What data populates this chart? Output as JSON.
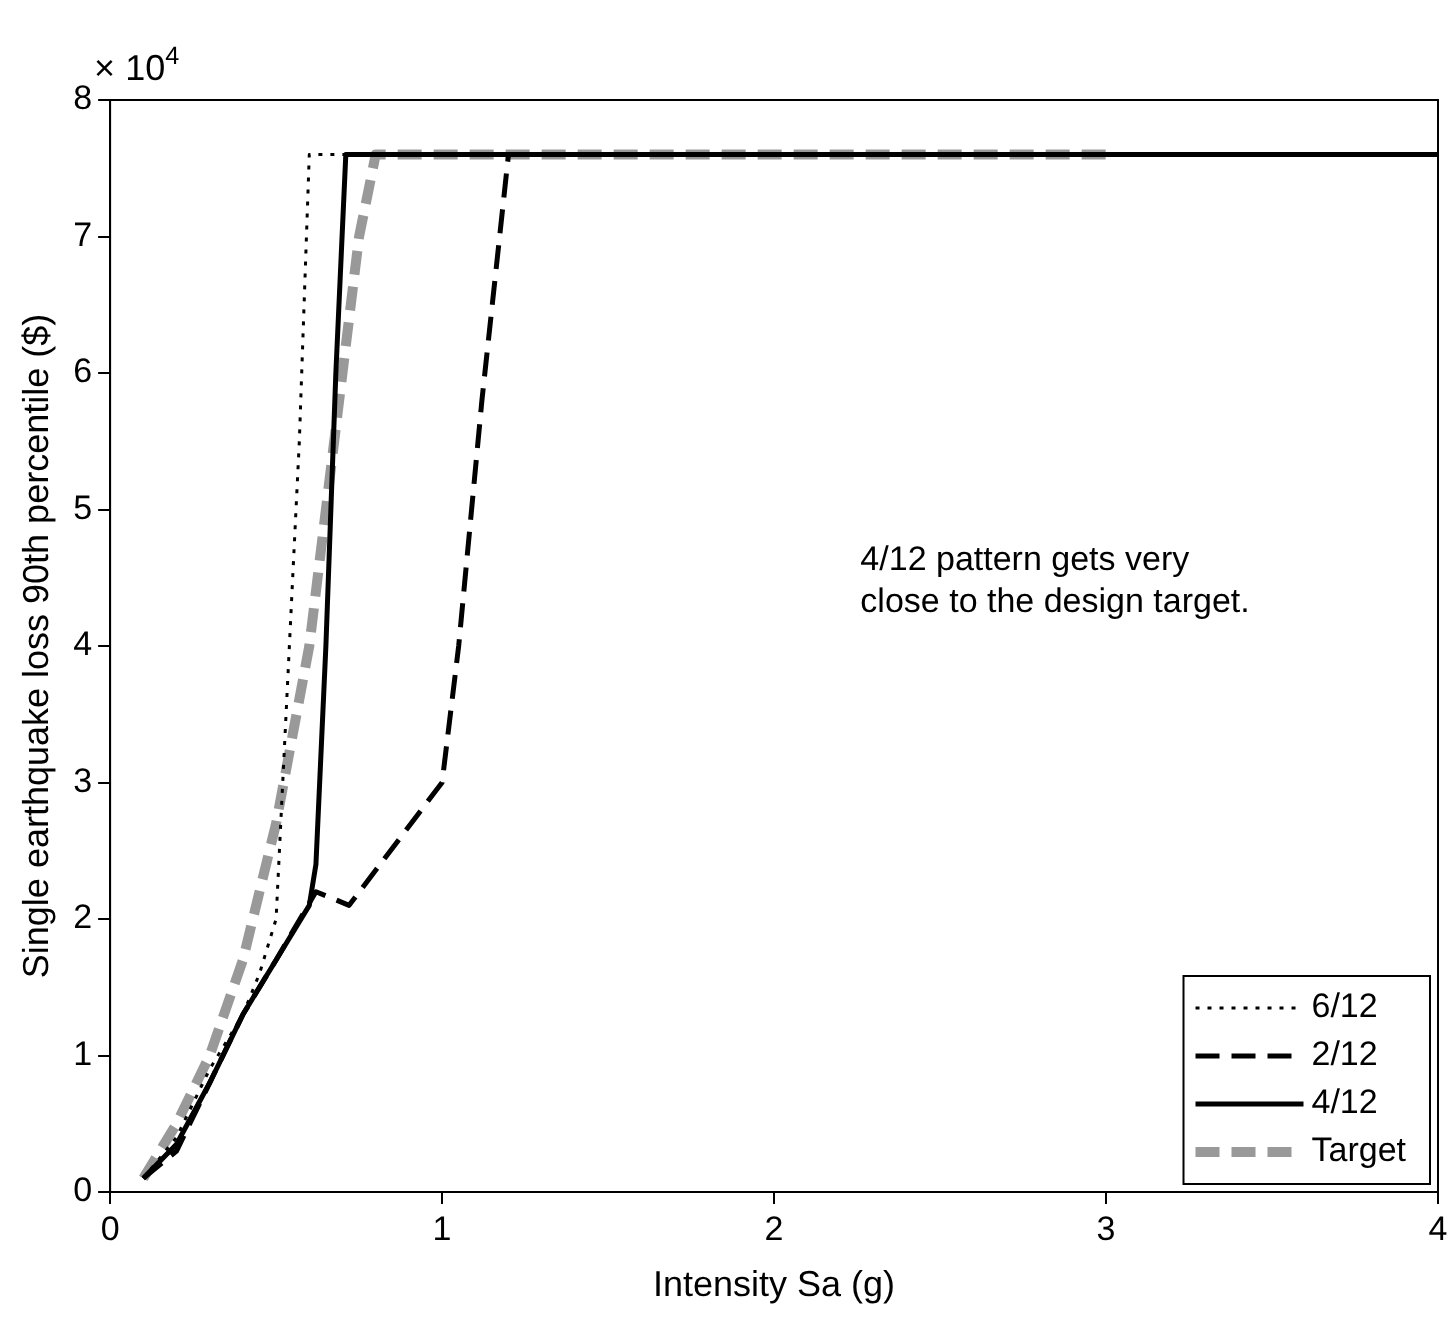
{
  "chart_data": {
    "type": "line",
    "xlabel": "Intensity Sa (g)",
    "ylabel": "Single earthquake loss 90th percentile ($)",
    "xlim": [
      0,
      4
    ],
    "xticks": [
      0,
      1,
      2,
      3,
      4
    ],
    "ylim": [
      0,
      8
    ],
    "yticks": [
      0,
      1,
      2,
      3,
      4,
      5,
      6,
      7,
      8
    ],
    "grid": false,
    "legend": "bottom right",
    "marker": "none",
    "annotations": [
      "× 10$^{4}$",
      "4/12 pattern gets very\nclose to the design target."
    ],
    "series": [
      {
        "name": "6/12",
        "color": "#000000",
        "line_style": "dotted",
        "x": [
          0.1,
          0.2,
          0.3,
          0.4,
          0.45,
          0.5,
          0.53,
          0.57,
          0.6,
          4
        ],
        "values": [
          0.1,
          0.4,
          0.9,
          1.3,
          1.6,
          2.0,
          3.5,
          5.5,
          7.6,
          7.6
        ]
      },
      {
        "name": "2/12",
        "color": "#000000",
        "line_style": "dashed",
        "x": [
          0.1,
          0.2,
          0.3,
          0.4,
          0.5,
          0.62,
          0.72,
          1.0,
          1.05,
          1.12,
          1.2,
          4
        ],
        "values": [
          0.1,
          0.3,
          0.8,
          1.3,
          1.7,
          2.2,
          2.1,
          3.0,
          4.0,
          5.8,
          7.6,
          7.6
        ]
      },
      {
        "name": "4/12",
        "color": "#000000",
        "line_style": "solid",
        "x": [
          0.1,
          0.2,
          0.3,
          0.4,
          0.5,
          0.6,
          0.62,
          0.65,
          0.68,
          0.71,
          4
        ],
        "values": [
          0.1,
          0.35,
          0.8,
          1.3,
          1.7,
          2.1,
          2.4,
          4.0,
          6.0,
          7.6,
          7.6
        ]
      },
      {
        "name": "Target",
        "color": "#999999",
        "line_style": "dashed",
        "x": [
          0.1,
          0.2,
          0.3,
          0.4,
          0.5,
          0.6,
          0.65,
          0.7,
          0.75,
          0.8,
          3
        ],
        "values": [
          0.1,
          0.5,
          1.0,
          1.7,
          2.7,
          4.0,
          5.0,
          6.0,
          7.0,
          7.6,
          7.6
        ]
      }
    ]
  }
}
